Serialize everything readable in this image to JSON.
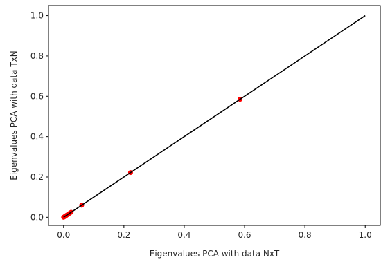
{
  "chart_data": {
    "type": "scatter",
    "xlabel": "Eigenvalues PCA with data NxT",
    "ylabel": "Eigenvalues PCA with data TxN",
    "xlim": [
      -0.05,
      1.05
    ],
    "ylim": [
      -0.04,
      1.05
    ],
    "xticks": [
      "0.0",
      "0.2",
      "0.4",
      "0.6",
      "0.8",
      "1.0"
    ],
    "yticks": [
      "0.0",
      "0.2",
      "0.4",
      "0.6",
      "0.8",
      "1.0"
    ],
    "grid": false,
    "series": [
      {
        "kind": "points",
        "color": "#ff0000",
        "points": [
          [
            0.0,
            0.0
          ],
          [
            0.002,
            0.002
          ],
          [
            0.004,
            0.004
          ],
          [
            0.006,
            0.006
          ],
          [
            0.008,
            0.008
          ],
          [
            0.01,
            0.01
          ],
          [
            0.013,
            0.013
          ],
          [
            0.016,
            0.016
          ],
          [
            0.02,
            0.02
          ],
          [
            0.025,
            0.025
          ],
          [
            0.06,
            0.06
          ],
          [
            0.222,
            0.222
          ],
          [
            0.585,
            0.585
          ]
        ]
      },
      {
        "kind": "line",
        "color": "#000000",
        "points": [
          [
            0.0,
            0.0
          ],
          [
            1.0,
            1.0
          ]
        ]
      }
    ]
  }
}
